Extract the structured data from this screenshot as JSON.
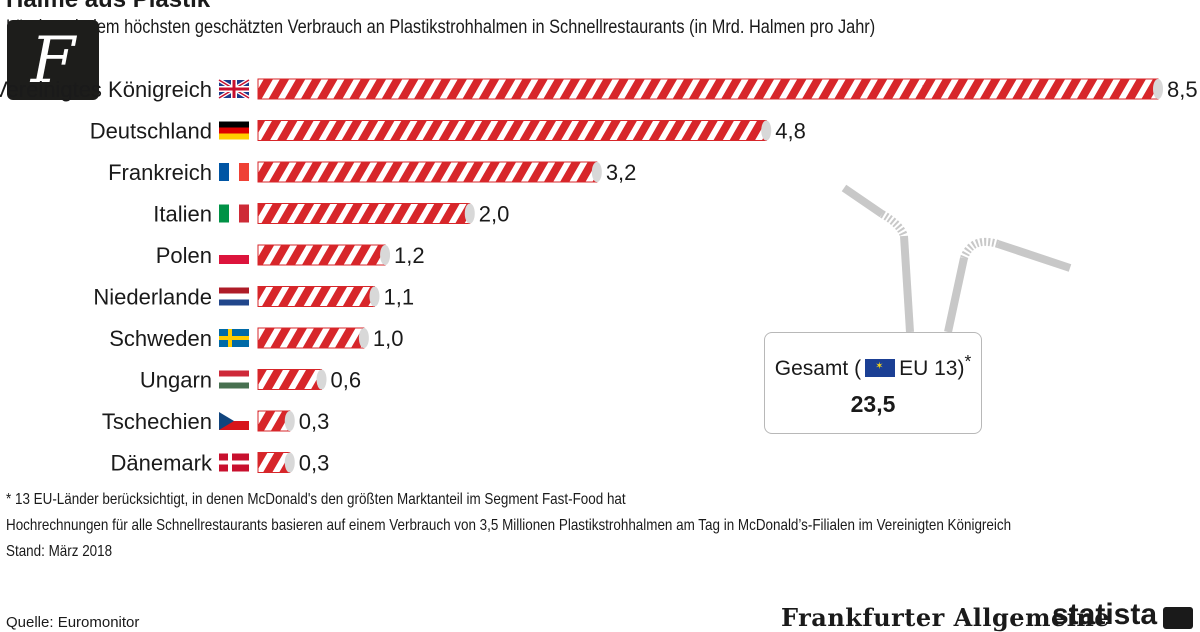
{
  "header": {
    "title": "Halme aus Plastik",
    "subtitle": "Länder mit dem höchsten geschätzten Verbrauch an Plastikstrohhalmen in Schnellrestaurants (in Mrd. Halmen pro Jahr)"
  },
  "chart_data": {
    "type": "bar",
    "orientation": "horizontal",
    "categories": [
      "Vereinigtes Königreich",
      "Deutschland",
      "Frankreich",
      "Italien",
      "Polen",
      "Niederlande",
      "Schweden",
      "Ungarn",
      "Tschechien",
      "Dänemark"
    ],
    "values": [
      8.5,
      4.8,
      3.2,
      2.0,
      1.2,
      1.1,
      1.0,
      0.6,
      0.3,
      0.3
    ],
    "value_labels": [
      "8,5",
      "4,8",
      "3,2",
      "2,0",
      "1,2",
      "1,1",
      "1,0",
      "0,6",
      "0,3",
      "0,3"
    ],
    "flags": [
      "flag-uk-icon",
      "flag-de-icon",
      "flag-fr-icon",
      "flag-it-icon",
      "flag-pl-icon",
      "flag-nl-icon",
      "flag-se-icon",
      "flag-hu-icon",
      "flag-cz-icon",
      "flag-dk-icon"
    ],
    "bar_style": "red-white-striped straw",
    "grid": false,
    "xlim": [
      0,
      8.5
    ]
  },
  "total": {
    "label_prefix": "Gesamt (",
    "label_suffix": "EU 13)",
    "footnote_marker": "*",
    "value": "23,5"
  },
  "footnotes": {
    "note1": "* 13 EU-Länder berücksichtigt, in denen McDonald's den größten Marktanteil im Segment Fast-Food hat",
    "note2": "Hochrechnungen für alle Schnellrestaurants basieren auf einem Verbrauch von 3,5 Millionen Plastikstrohhalmen am Tag in McDonald’s-Filialen im Vereinigten Königreich",
    "note3": "Stand: März 2018"
  },
  "source": "Quelle: Euromonitor",
  "logos": {
    "faz": "Frankfurter Allgemeine",
    "statista": "statista"
  },
  "colors": {
    "stripe_red": "#d7262a",
    "straw_gray": "#c8c8c8",
    "text": "#1a1a1a"
  }
}
